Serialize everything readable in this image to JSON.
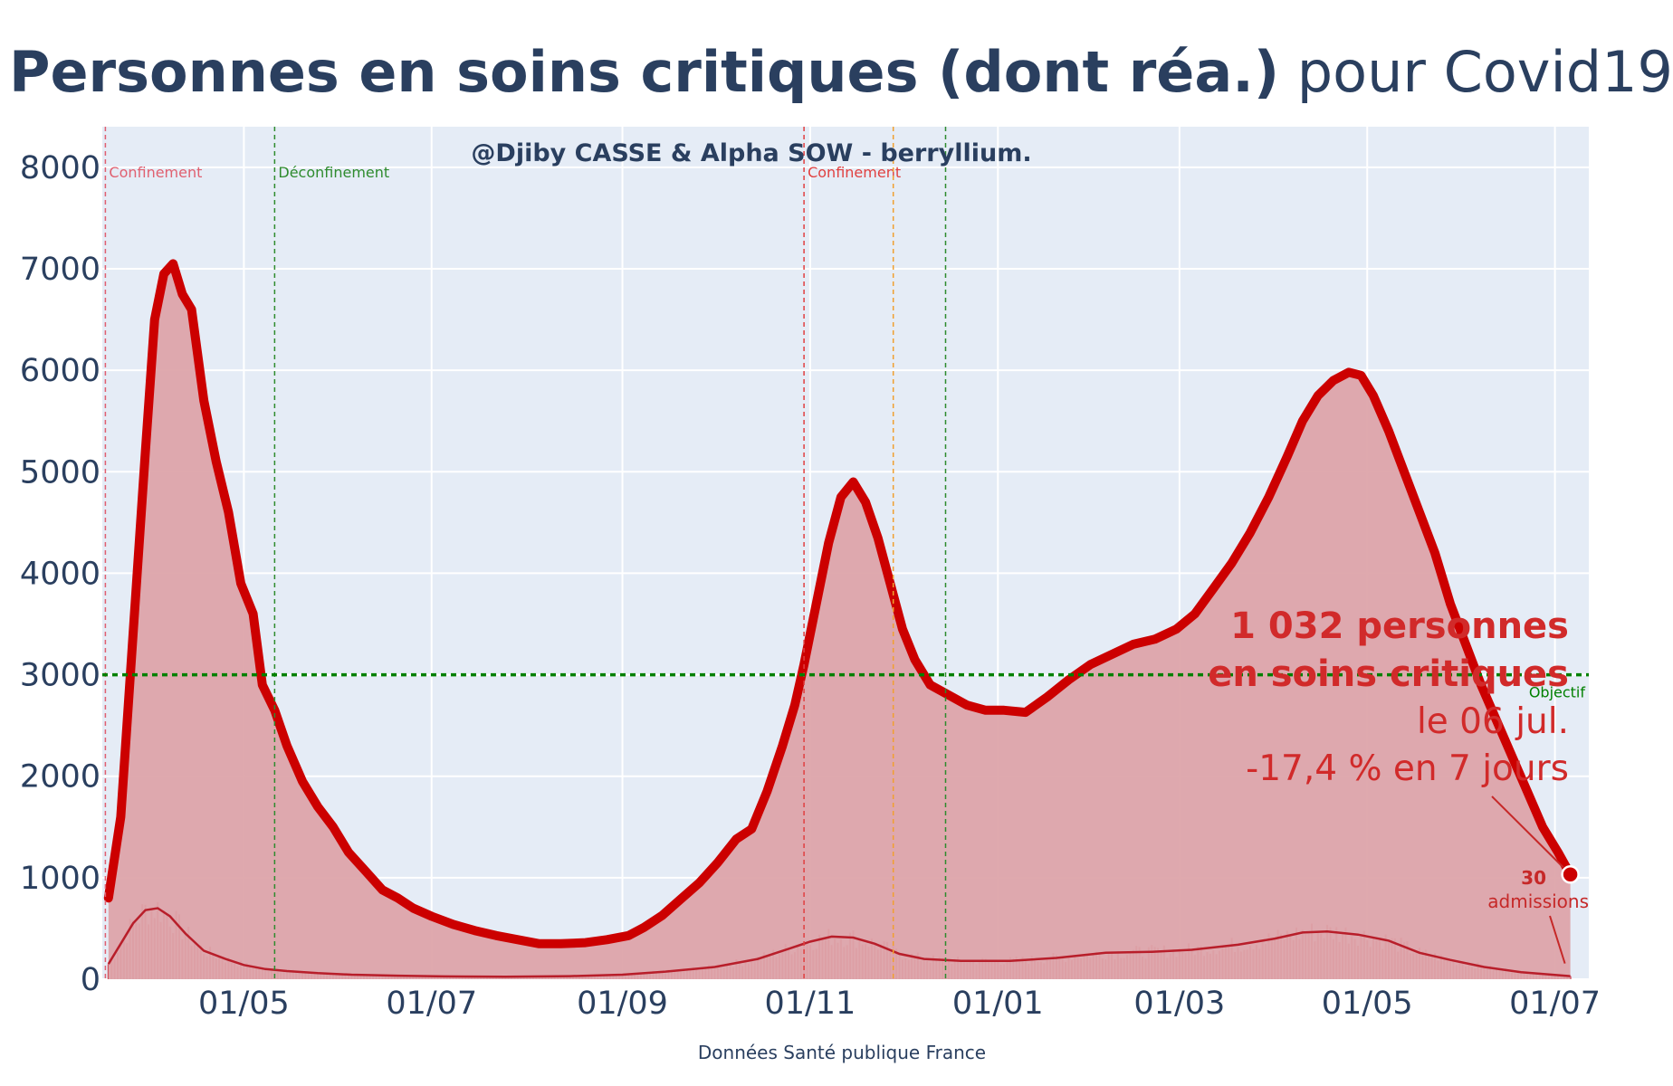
{
  "title": {
    "bold": "Personnes en soins critiques (dont réa.)",
    "rest": " pour Covid19"
  },
  "credit": "@Djiby CASSE & Alpha SOW - berryllium.",
  "source": "Données Santé publique France",
  "objective_label": "Objectif",
  "events": [
    {
      "date": "2020-03-17",
      "label": "Confinement",
      "color": "#e06070"
    },
    {
      "date": "2020-05-11",
      "label": "Déconfinement",
      "color": "#2e8b2e"
    },
    {
      "date": "2020-10-30",
      "label": "Confinement",
      "color": "#e04040"
    },
    {
      "date": "2020-11-28",
      "label": "",
      "color": "#f0a030"
    },
    {
      "date": "2020-12-15",
      "label": "",
      "color": "#2e8b2e"
    }
  ],
  "annotation": {
    "line1": "1 032 personnes",
    "line2": "en soins critiques",
    "line3": "le 06 jul.",
    "line4": "-17,4 % en 7 jours",
    "admissions_value": "30",
    "admissions_label": "admissions"
  },
  "colors": {
    "line": "#cc0000",
    "fill": "#dda4aa",
    "plot_bg": "#e5ecf6",
    "objective": "#008000",
    "bars": "#d0404f"
  },
  "chart_data": {
    "type": "area",
    "title": "Personnes en soins critiques (dont réa.) pour Covid19",
    "xlabel": "Données Santé publique France",
    "ylabel": "",
    "xlim": [
      "2020-03-16",
      "2021-07-12"
    ],
    "ylim": [
      0,
      8400
    ],
    "yticks": [
      0,
      1000,
      2000,
      3000,
      4000,
      5000,
      6000,
      7000,
      8000
    ],
    "xticks": [
      {
        "date": "2020-05-01",
        "label": "01/05"
      },
      {
        "date": "2020-07-01",
        "label": "01/07"
      },
      {
        "date": "2020-09-01",
        "label": "01/09"
      },
      {
        "date": "2020-11-01",
        "label": "01/11"
      },
      {
        "date": "2021-01-01",
        "label": "01/01"
      },
      {
        "date": "2021-03-01",
        "label": "01/03"
      },
      {
        "date": "2021-05-01",
        "label": "01/05"
      },
      {
        "date": "2021-07-01",
        "label": "01/07"
      }
    ],
    "grid": true,
    "objective": 3000,
    "series": [
      {
        "values": [
          [
            "2020-03-18",
            800
          ],
          [
            "2020-03-22",
            1600
          ],
          [
            "2020-03-26",
            3400
          ],
          [
            "2020-03-30",
            5200
          ],
          [
            "2020-04-02",
            6500
          ],
          [
            "2020-04-05",
            6950
          ],
          [
            "2020-04-08",
            7050
          ],
          [
            "2020-04-11",
            6750
          ],
          [
            "2020-04-14",
            6600
          ],
          [
            "2020-04-18",
            5700
          ],
          [
            "2020-04-22",
            5100
          ],
          [
            "2020-04-26",
            4600
          ],
          [
            "2020-04-30",
            3900
          ],
          [
            "2020-05-04",
            3600
          ],
          [
            "2020-05-07",
            2900
          ],
          [
            "2020-05-11",
            2650
          ],
          [
            "2020-05-15",
            2300
          ],
          [
            "2020-05-20",
            1950
          ],
          [
            "2020-05-25",
            1700
          ],
          [
            "2020-05-30",
            1500
          ],
          [
            "2020-06-04",
            1250
          ],
          [
            "2020-06-10",
            1050
          ],
          [
            "2020-06-15",
            880
          ],
          [
            "2020-06-20",
            800
          ],
          [
            "2020-06-25",
            700
          ],
          [
            "2020-07-01",
            620
          ],
          [
            "2020-07-08",
            540
          ],
          [
            "2020-07-15",
            480
          ],
          [
            "2020-07-22",
            430
          ],
          [
            "2020-07-29",
            390
          ],
          [
            "2020-08-05",
            350
          ],
          [
            "2020-08-12",
            350
          ],
          [
            "2020-08-20",
            360
          ],
          [
            "2020-08-27",
            390
          ],
          [
            "2020-09-03",
            430
          ],
          [
            "2020-09-08",
            510
          ],
          [
            "2020-09-14",
            630
          ],
          [
            "2020-09-20",
            790
          ],
          [
            "2020-09-26",
            950
          ],
          [
            "2020-10-02",
            1150
          ],
          [
            "2020-10-08",
            1380
          ],
          [
            "2020-10-13",
            1480
          ],
          [
            "2020-10-18",
            1850
          ],
          [
            "2020-10-23",
            2300
          ],
          [
            "2020-10-27",
            2700
          ],
          [
            "2020-10-30",
            3100
          ],
          [
            "2020-11-03",
            3700
          ],
          [
            "2020-11-07",
            4300
          ],
          [
            "2020-11-11",
            4750
          ],
          [
            "2020-11-15",
            4900
          ],
          [
            "2020-11-19",
            4700
          ],
          [
            "2020-11-23",
            4350
          ],
          [
            "2020-11-27",
            3900
          ],
          [
            "2020-12-01",
            3450
          ],
          [
            "2020-12-05",
            3150
          ],
          [
            "2020-12-10",
            2900
          ],
          [
            "2020-12-16",
            2800
          ],
          [
            "2020-12-22",
            2700
          ],
          [
            "2020-12-28",
            2650
          ],
          [
            "2021-01-03",
            2650
          ],
          [
            "2021-01-10",
            2630
          ],
          [
            "2021-01-17",
            2780
          ],
          [
            "2021-01-24",
            2950
          ],
          [
            "2021-01-31",
            3100
          ],
          [
            "2021-02-07",
            3200
          ],
          [
            "2021-02-14",
            3300
          ],
          [
            "2021-02-21",
            3350
          ],
          [
            "2021-02-28",
            3450
          ],
          [
            "2021-03-06",
            3600
          ],
          [
            "2021-03-12",
            3850
          ],
          [
            "2021-03-18",
            4100
          ],
          [
            "2021-03-24",
            4400
          ],
          [
            "2021-03-30",
            4750
          ],
          [
            "2021-04-05",
            5150
          ],
          [
            "2021-04-10",
            5500
          ],
          [
            "2021-04-15",
            5750
          ],
          [
            "2021-04-20",
            5900
          ],
          [
            "2021-04-25",
            5980
          ],
          [
            "2021-04-29",
            5950
          ],
          [
            "2021-05-03",
            5750
          ],
          [
            "2021-05-08",
            5400
          ],
          [
            "2021-05-13",
            5000
          ],
          [
            "2021-05-18",
            4600
          ],
          [
            "2021-05-23",
            4200
          ],
          [
            "2021-05-28",
            3700
          ],
          [
            "2021-06-02",
            3300
          ],
          [
            "2021-06-07",
            2900
          ],
          [
            "2021-06-12",
            2550
          ],
          [
            "2021-06-17",
            2200
          ],
          [
            "2021-06-22",
            1850
          ],
          [
            "2021-06-27",
            1500
          ],
          [
            "2021-07-02",
            1250
          ],
          [
            "2021-07-06",
            1032
          ]
        ]
      },
      {
        "values": [
          [
            "2020-03-18",
            150
          ],
          [
            "2020-03-22",
            350
          ],
          [
            "2020-03-26",
            550
          ],
          [
            "2020-03-30",
            680
          ],
          [
            "2020-04-03",
            700
          ],
          [
            "2020-04-07",
            620
          ],
          [
            "2020-04-12",
            450
          ],
          [
            "2020-04-18",
            280
          ],
          [
            "2020-04-25",
            200
          ],
          [
            "2020-05-01",
            140
          ],
          [
            "2020-05-08",
            100
          ],
          [
            "2020-05-15",
            80
          ],
          [
            "2020-05-25",
            60
          ],
          [
            "2020-06-05",
            45
          ],
          [
            "2020-06-20",
            35
          ],
          [
            "2020-07-05",
            28
          ],
          [
            "2020-07-25",
            25
          ],
          [
            "2020-08-15",
            30
          ],
          [
            "2020-09-01",
            45
          ],
          [
            "2020-09-15",
            75
          ],
          [
            "2020-10-01",
            120
          ],
          [
            "2020-10-15",
            200
          ],
          [
            "2020-10-25",
            300
          ],
          [
            "2020-11-01",
            370
          ],
          [
            "2020-11-08",
            420
          ],
          [
            "2020-11-15",
            410
          ],
          [
            "2020-11-22",
            350
          ],
          [
            "2020-11-30",
            250
          ],
          [
            "2020-12-08",
            200
          ],
          [
            "2020-12-20",
            180
          ],
          [
            "2021-01-05",
            180
          ],
          [
            "2021-01-20",
            210
          ],
          [
            "2021-02-05",
            260
          ],
          [
            "2021-02-20",
            270
          ],
          [
            "2021-03-05",
            290
          ],
          [
            "2021-03-20",
            340
          ],
          [
            "2021-04-01",
            400
          ],
          [
            "2021-04-10",
            460
          ],
          [
            "2021-04-18",
            470
          ],
          [
            "2021-04-28",
            440
          ],
          [
            "2021-05-08",
            380
          ],
          [
            "2021-05-18",
            260
          ],
          [
            "2021-05-28",
            190
          ],
          [
            "2021-06-08",
            120
          ],
          [
            "2021-06-20",
            70
          ],
          [
            "2021-07-06",
            30
          ]
        ]
      }
    ]
  }
}
